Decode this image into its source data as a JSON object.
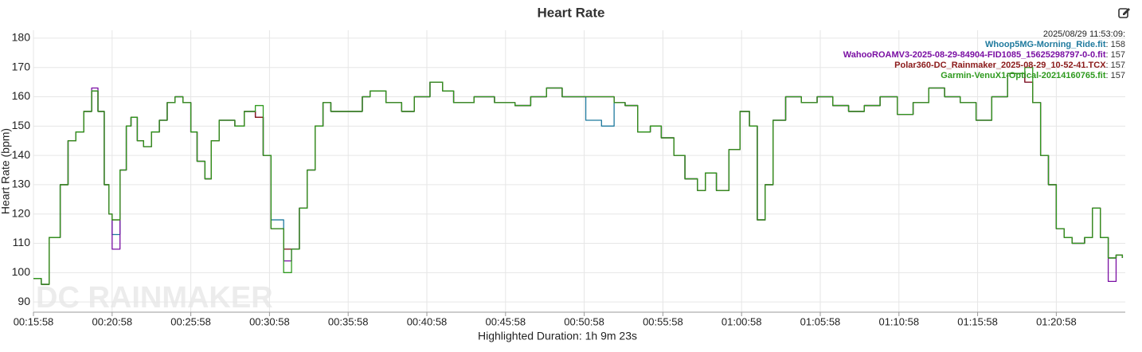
{
  "chart_data": {
    "type": "line",
    "title": "Heart Rate",
    "y_label": "Heart Rate (bpm)",
    "x_label": "Highlighted Duration: 1h 9m 23s",
    "watermark": "DC RAINMAKER",
    "grid": true,
    "step": true,
    "legend_position": "top-right",
    "hover": {
      "time": "2025/08/29 11:53:09:",
      "values": [
        158,
        157,
        157,
        157
      ],
      "value_labels": [
        ": 158",
        ": 157",
        ": 157",
        ": 157"
      ]
    },
    "xlim": [
      958,
      5121
    ],
    "ylim": [
      86.5,
      182.7
    ],
    "yticks": [
      90,
      100,
      110,
      120,
      130,
      140,
      150,
      160,
      170,
      180
    ],
    "xticks": [
      {
        "value": 958,
        "label": "00:15:58"
      },
      {
        "value": 1258,
        "label": "00:20:58"
      },
      {
        "value": 1558,
        "label": "00:25:58"
      },
      {
        "value": 1858,
        "label": "00:30:58"
      },
      {
        "value": 2158,
        "label": "00:35:58"
      },
      {
        "value": 2458,
        "label": "00:40:58"
      },
      {
        "value": 2758,
        "label": "00:45:58"
      },
      {
        "value": 3058,
        "label": "00:50:58"
      },
      {
        "value": 3358,
        "label": "00:55:58"
      },
      {
        "value": 3658,
        "label": "01:00:58"
      },
      {
        "value": 3958,
        "label": "01:05:58"
      },
      {
        "value": 4258,
        "label": "01:10:58"
      },
      {
        "value": 4558,
        "label": "01:15:58"
      },
      {
        "value": 4858,
        "label": "01:20:58"
      }
    ],
    "x": [
      958,
      988,
      1018,
      1060,
      1090,
      1120,
      1150,
      1180,
      1204,
      1228,
      1246,
      1258,
      1288,
      1312,
      1330,
      1354,
      1378,
      1408,
      1438,
      1468,
      1498,
      1528,
      1558,
      1582,
      1612,
      1636,
      1666,
      1696,
      1726,
      1762,
      1804,
      1834,
      1864,
      1912,
      1942,
      1972,
      2002,
      2032,
      2062,
      2092,
      2152,
      2212,
      2242,
      2302,
      2362,
      2410,
      2470,
      2518,
      2560,
      2638,
      2716,
      2794,
      2854,
      2914,
      2974,
      3064,
      3124,
      3172,
      3214,
      3262,
      3310,
      3352,
      3400,
      3442,
      3490,
      3520,
      3562,
      3610,
      3652,
      3688,
      3718,
      3748,
      3778,
      3826,
      3886,
      3946,
      4006,
      4066,
      4126,
      4186,
      4252,
      4312,
      4372,
      4432,
      4492,
      4552,
      4612,
      4672,
      4738,
      4768,
      4798,
      4828,
      4858,
      4888,
      4918,
      4966,
      4996,
      5026,
      5056,
      5086,
      5110
    ],
    "series": [
      {
        "name": "Whoop5MG-Morning_Ride.fit",
        "color": "#1f7a9e",
        "values": [
          98,
          96,
          112,
          130,
          145,
          148,
          155,
          162,
          155,
          130,
          120,
          113,
          135,
          150,
          153,
          145,
          143,
          148,
          152,
          158,
          160,
          158,
          148,
          138,
          132,
          145,
          152,
          152,
          150,
          155,
          153,
          140,
          118,
          108,
          108,
          122,
          135,
          150,
          158,
          155,
          155,
          160,
          162,
          158,
          155,
          160,
          165,
          162,
          158,
          160,
          158,
          157,
          160,
          163,
          160,
          152,
          150,
          158,
          157,
          148,
          150,
          146,
          140,
          132,
          128,
          134,
          128,
          142,
          155,
          150,
          118,
          130,
          152,
          160,
          158,
          160,
          157,
          155,
          157,
          160,
          154,
          158,
          163,
          160,
          158,
          152,
          160,
          168,
          165,
          158,
          140,
          130,
          115,
          112,
          110,
          112,
          122,
          112,
          105,
          106,
          105
        ]
      },
      {
        "name": "WahooROAMV3-2025-08-29-84904-FID1085_15625298797-0-0.fit",
        "color": "#7a0fa3",
        "values": [
          98,
          96,
          112,
          130,
          145,
          148,
          155,
          163,
          155,
          130,
          120,
          108,
          135,
          150,
          153,
          145,
          143,
          148,
          152,
          158,
          160,
          158,
          148,
          138,
          132,
          145,
          152,
          152,
          150,
          155,
          153,
          140,
          115,
          104,
          108,
          122,
          135,
          150,
          158,
          155,
          155,
          160,
          162,
          158,
          155,
          160,
          165,
          162,
          158,
          160,
          158,
          157,
          160,
          163,
          160,
          160,
          160,
          158,
          157,
          148,
          150,
          146,
          140,
          132,
          128,
          134,
          128,
          142,
          155,
          150,
          118,
          130,
          152,
          160,
          158,
          160,
          157,
          155,
          157,
          160,
          154,
          158,
          163,
          160,
          158,
          152,
          160,
          168,
          165,
          158,
          140,
          130,
          115,
          112,
          110,
          112,
          122,
          112,
          97,
          106,
          105
        ]
      },
      {
        "name": "Polar360-DC_Rainmaker_2025-08-29_10-52-41.TCX",
        "color": "#8b1a1a",
        "values": [
          98,
          96,
          112,
          130,
          145,
          148,
          155,
          162,
          155,
          130,
          120,
          118,
          135,
          150,
          153,
          145,
          143,
          148,
          152,
          158,
          160,
          158,
          148,
          138,
          132,
          145,
          152,
          152,
          150,
          155,
          153,
          140,
          115,
          108,
          108,
          122,
          135,
          150,
          158,
          155,
          155,
          160,
          162,
          158,
          155,
          160,
          165,
          162,
          158,
          160,
          158,
          157,
          160,
          163,
          160,
          160,
          160,
          158,
          157,
          148,
          150,
          146,
          140,
          132,
          128,
          134,
          128,
          142,
          155,
          150,
          118,
          130,
          152,
          160,
          158,
          160,
          157,
          155,
          157,
          160,
          154,
          158,
          163,
          160,
          158,
          152,
          160,
          168,
          165,
          158,
          140,
          130,
          115,
          112,
          110,
          112,
          122,
          112,
          105,
          106,
          105
        ]
      },
      {
        "name": "Garmin-VenuX1-Optical-20214160765.fit",
        "color": "#2e9a1e",
        "values": [
          98,
          96,
          112,
          130,
          145,
          148,
          155,
          162,
          155,
          130,
          120,
          118,
          135,
          150,
          153,
          145,
          143,
          148,
          152,
          158,
          160,
          158,
          148,
          138,
          132,
          145,
          152,
          152,
          150,
          155,
          157,
          140,
          115,
          100,
          108,
          122,
          135,
          150,
          158,
          155,
          155,
          160,
          162,
          158,
          155,
          160,
          165,
          162,
          158,
          160,
          158,
          157,
          160,
          163,
          160,
          160,
          160,
          158,
          157,
          148,
          150,
          146,
          140,
          132,
          128,
          134,
          128,
          142,
          155,
          150,
          118,
          130,
          152,
          160,
          158,
          160,
          157,
          155,
          157,
          160,
          154,
          158,
          163,
          160,
          158,
          152,
          160,
          168,
          170,
          158,
          140,
          130,
          115,
          112,
          110,
          112,
          122,
          112,
          105,
          106,
          105
        ]
      }
    ]
  }
}
